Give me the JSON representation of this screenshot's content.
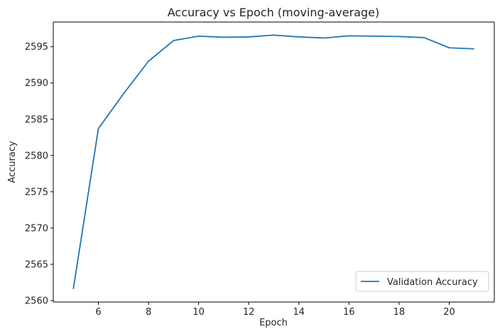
{
  "chart_data": {
    "type": "line",
    "title": "Accuracy vs Epoch (moving-average)",
    "xlabel": "Epoch",
    "ylabel": "Accuracy",
    "xlim": [
      4.2,
      21.8
    ],
    "ylim": [
      2559.8,
      2598.4
    ],
    "xticks": [
      6,
      8,
      10,
      12,
      14,
      16,
      18,
      20
    ],
    "yticks": [
      2560,
      2565,
      2570,
      2575,
      2580,
      2585,
      2590,
      2595
    ],
    "grid": false,
    "legend": "lower-right",
    "series": [
      {
        "name": "Validation Accuracy",
        "color": "#1f77b4",
        "x": [
          5,
          6,
          7,
          8,
          9,
          10,
          11,
          12,
          13,
          14,
          15,
          16,
          17,
          18,
          19,
          20,
          21
        ],
        "y": [
          2561.6,
          2583.7,
          2588.5,
          2593.0,
          2595.85,
          2596.45,
          2596.3,
          2596.35,
          2596.6,
          2596.35,
          2596.2,
          2596.5,
          2596.45,
          2596.4,
          2596.25,
          2594.85,
          2594.7
        ]
      }
    ]
  }
}
